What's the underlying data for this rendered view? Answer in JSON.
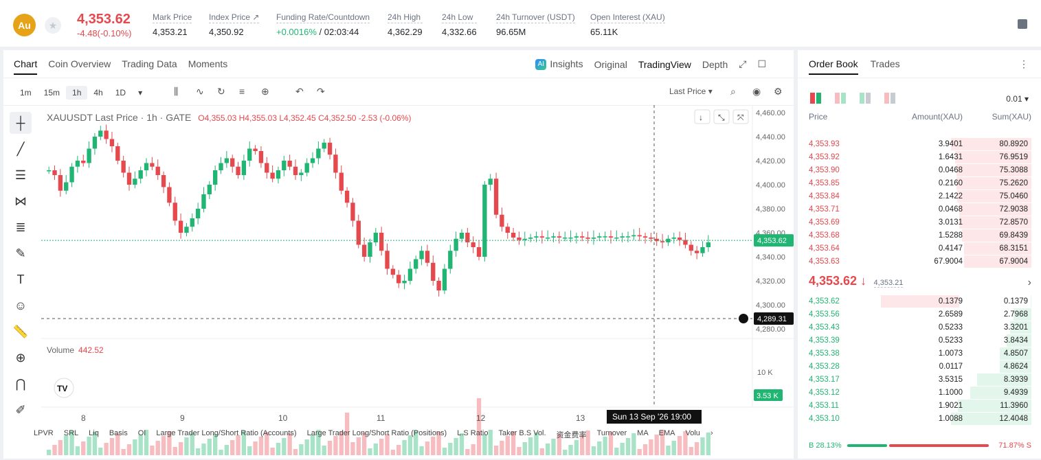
{
  "header": {
    "coin": "Au",
    "last_price": "4,353.62",
    "change": "-4.48(-0.10%)",
    "stats": [
      {
        "label": "Mark Price",
        "value": "4,353.21"
      },
      {
        "label": "Index Price ↗",
        "value": "4,350.92"
      },
      {
        "label": "Funding Rate/Countdown",
        "value_green": "+0.0016%",
        "value": "/ 02:03:44"
      },
      {
        "label": "24h High",
        "value": "4,362.29"
      },
      {
        "label": "24h Low",
        "value": "4,332.66"
      },
      {
        "label": "24h Turnover (USDT)",
        "value": "96.65M"
      },
      {
        "label": "Open Interest (XAU)",
        "value": "65.11K"
      }
    ]
  },
  "chart_tabs": [
    "Chart",
    "Coin Overview",
    "Trading Data",
    "Moments"
  ],
  "view_tabs": [
    "Insights",
    "Original",
    "TradingView",
    "Depth"
  ],
  "intervals": [
    "1m",
    "15m",
    "1h",
    "4h",
    "1D"
  ],
  "price_source": "Last Price",
  "chart_title": {
    "name": "XAUUSDT Last Price · 1h · GATE",
    "o": "4,355.03",
    "h": "4,355.03",
    "l": "4,352.45",
    "c": "4,352.50",
    "chg": "-2.53 (-0.06%)"
  },
  "volume": {
    "label": "Volume",
    "value": "442.52",
    "axis": "10 K",
    "last": "3.53 K"
  },
  "price_axis": [
    "4,460.00",
    "4,440.00",
    "4,420.00",
    "4,400.00",
    "4,380.00",
    "4,360.00",
    "4,340.00",
    "4,320.00",
    "4,300.00",
    "4,280.00"
  ],
  "current_price_tag": "4,353.62",
  "cursor_price_tag": "4,289.31",
  "x_axis": [
    "8",
    "9",
    "10",
    "11",
    "12",
    "13"
  ],
  "cursor_time": "Sun 13 Sep '26   19:00",
  "indicators": [
    "LPVR",
    "SRL",
    "Liq",
    "Basis",
    "OI",
    "Large Trader Long/Short Ratio (Accounts)",
    "Large Trader Long/Short Ratio (Positions)",
    "L.S Ratio",
    "Taker B.S Vol.",
    "资金费率",
    "Turnover",
    "MA",
    "EMA",
    "Volu"
  ],
  "orderbook": {
    "tabs": [
      "Order Book",
      "Trades"
    ],
    "precision": "0.01",
    "headers": [
      "Price",
      "Amount(XAU)",
      "Sum(XAU)"
    ],
    "asks": [
      [
        "4,353.93",
        "3.9401",
        "80.8920"
      ],
      [
        "4,353.92",
        "1.6431",
        "76.9519"
      ],
      [
        "4,353.90",
        "0.0468",
        "75.3088"
      ],
      [
        "4,353.85",
        "0.2160",
        "75.2620"
      ],
      [
        "4,353.84",
        "2.1422",
        "75.0460"
      ],
      [
        "4,353.71",
        "0.0468",
        "72.9038"
      ],
      [
        "4,353.69",
        "3.0131",
        "72.8570"
      ],
      [
        "4,353.68",
        "1.5288",
        "69.8439"
      ],
      [
        "4,353.64",
        "0.4147",
        "68.3151"
      ],
      [
        "4,353.63",
        "67.9004",
        "67.9004"
      ]
    ],
    "mid_price": "4,353.62 ↓",
    "mark": "4,353.21",
    "bids": [
      [
        "4,353.62",
        "0.1379",
        "0.1379"
      ],
      [
        "4,353.56",
        "2.6589",
        "2.7968"
      ],
      [
        "4,353.43",
        "0.5233",
        "3.3201"
      ],
      [
        "4,353.39",
        "0.5233",
        "3.8434"
      ],
      [
        "4,353.38",
        "1.0073",
        "4.8507"
      ],
      [
        "4,353.28",
        "0.0117",
        "4.8624"
      ],
      [
        "4,353.17",
        "3.5315",
        "8.3939"
      ],
      [
        "4,353.12",
        "1.1000",
        "9.4939"
      ],
      [
        "4,353.11",
        "1.9021",
        "11.3960"
      ],
      [
        "4,353.10",
        "1.0088",
        "12.4048"
      ]
    ],
    "buy_ratio": "B 28.13%",
    "sell_ratio": "71.87% S",
    "buy_fraction": 0.2813
  },
  "colors": {
    "up": "#21b573",
    "down": "#e5484d"
  }
}
